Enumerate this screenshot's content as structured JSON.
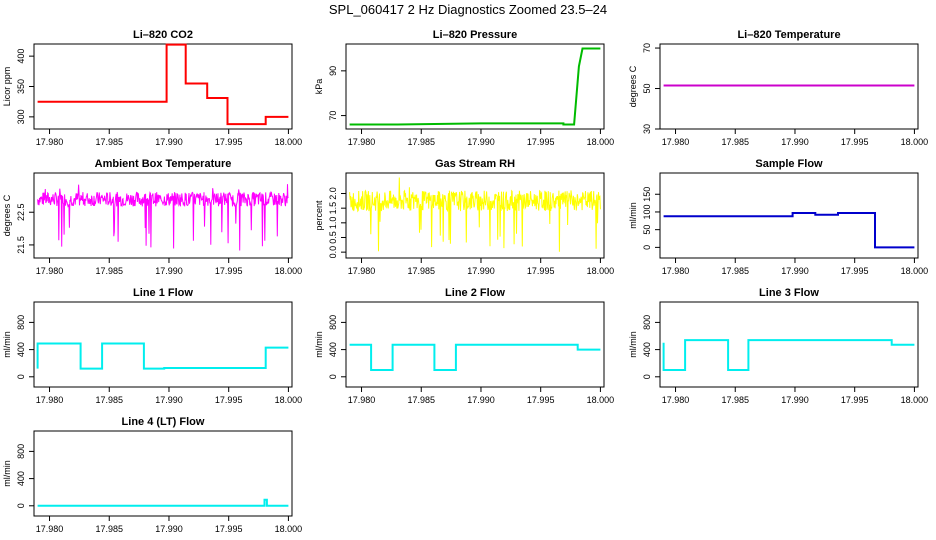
{
  "page": {
    "title": "SPL_060417  2 Hz Diagnostics Zoomed 23.5–24"
  },
  "chart_data": [
    {
      "type": "line",
      "title": "Li–820 CO2",
      "xlabel": "",
      "ylabel": "Licor ppm",
      "color": "#ff0000",
      "x_ticks": [
        "17.980",
        "17.985",
        "17.990",
        "17.995",
        "18.000"
      ],
      "xlim": [
        17.9787,
        18.0003
      ],
      "ylim": [
        280,
        420
      ],
      "y_ticks": [
        300,
        350,
        400
      ],
      "series": [
        {
          "x": [
            17.979,
            17.9898,
            17.9898,
            17.9914,
            17.9914,
            17.9932,
            17.9932,
            17.9949,
            17.9949,
            17.9981,
            17.9981,
            18.0
          ],
          "y": [
            325,
            325,
            419,
            419,
            355,
            355,
            331,
            331,
            288,
            288,
            300,
            300
          ]
        }
      ]
    },
    {
      "type": "line",
      "title": "Li–820 Pressure",
      "xlabel": "",
      "ylabel": "kPa",
      "color": "#00bb00",
      "x_ticks": [
        "17.980",
        "17.985",
        "17.990",
        "17.995",
        "18.000"
      ],
      "xlim": [
        17.9787,
        18.0003
      ],
      "ylim": [
        64,
        102
      ],
      "y_ticks": [
        70,
        90
      ],
      "series": [
        {
          "x": [
            17.979,
            17.983,
            17.99,
            17.9969,
            17.9969,
            17.9978,
            17.9982,
            17.9985,
            18.0
          ],
          "y": [
            66,
            66,
            66.5,
            66.5,
            66,
            66,
            92,
            100,
            100
          ]
        }
      ]
    },
    {
      "type": "line",
      "title": "Li–820 Temperature",
      "xlabel": "",
      "ylabel": "degrees C",
      "color": "#cc00cc",
      "x_ticks": [
        "17.980",
        "17.985",
        "17.990",
        "17.995",
        "18.000"
      ],
      "xlim": [
        17.9787,
        18.0003
      ],
      "ylim": [
        30,
        72
      ],
      "y_ticks": [
        30,
        50,
        70
      ],
      "series": [
        {
          "x": [
            17.979,
            18.0
          ],
          "y": [
            51.5,
            51.5
          ]
        }
      ]
    },
    {
      "type": "line",
      "title": "Ambient Box Temperature",
      "xlabel": "",
      "ylabel": "degrees C",
      "color": "#ff00ff",
      "x_ticks": [
        "17.980",
        "17.985",
        "17.990",
        "17.995",
        "18.000"
      ],
      "xlim": [
        17.9787,
        18.0003
      ],
      "ylim": [
        21.1,
        23.7
      ],
      "y_ticks": [
        21.5,
        22.5
      ],
      "noise": {
        "center": 22.9,
        "amp": 0.22,
        "spike_low": 21.3,
        "spike_high": 23.6
      },
      "series": [
        {
          "x": [
            17.979,
            18.0
          ],
          "y": [
            22.9,
            22.9
          ]
        }
      ]
    },
    {
      "type": "line",
      "title": "Gas Stream RH",
      "xlabel": "",
      "ylabel": "percent",
      "color": "#ffff00",
      "x_ticks": [
        "17.980",
        "17.985",
        "17.990",
        "17.995",
        "18.000"
      ],
      "xlim": [
        17.9787,
        18.0003
      ],
      "ylim": [
        -0.2,
        2.7
      ],
      "y_ticks": [
        0.0,
        0.5,
        1.0,
        1.5,
        2.0
      ],
      "noise": {
        "center": 1.75,
        "amp": 0.35,
        "spike_low": 0.0,
        "spike_high": 2.6
      },
      "series": [
        {
          "x": [
            17.979,
            18.0
          ],
          "y": [
            1.75,
            1.75
          ]
        }
      ]
    },
    {
      "type": "line",
      "title": "Sample Flow",
      "xlabel": "",
      "ylabel": "ml/min",
      "color": "#0000cc",
      "x_ticks": [
        "17.980",
        "17.985",
        "17.990",
        "17.995",
        "18.000"
      ],
      "xlim": [
        17.9787,
        18.0003
      ],
      "ylim": [
        -30,
        210
      ],
      "y_ticks": [
        0,
        50,
        100,
        150
      ],
      "series": [
        {
          "x": [
            17.979,
            17.9898,
            17.9898,
            17.9917,
            17.9917,
            17.9936,
            17.9936,
            17.9967,
            17.9967,
            18.0
          ],
          "y": [
            88,
            88,
            97,
            97,
            92,
            92,
            97,
            97,
            0,
            0
          ]
        }
      ]
    },
    {
      "type": "line",
      "title": "Line 1 Flow",
      "xlabel": "",
      "ylabel": "ml/min",
      "color": "#00eeee",
      "x_ticks": [
        "17.980",
        "17.985",
        "17.990",
        "17.995",
        "18.000"
      ],
      "xlim": [
        17.9787,
        18.0003
      ],
      "ylim": [
        -150,
        1100
      ],
      "y_ticks": [
        0,
        400,
        800
      ],
      "series": [
        {
          "x": [
            17.979,
            17.979,
            17.9826,
            17.9826,
            17.9844,
            17.9844,
            17.9879,
            17.9879,
            17.9896,
            17.9896,
            17.9981,
            17.9981,
            18.0
          ],
          "y": [
            120,
            490,
            490,
            120,
            120,
            490,
            490,
            120,
            120,
            130,
            130,
            430,
            430
          ]
        }
      ]
    },
    {
      "type": "line",
      "title": "Line 2 Flow",
      "xlabel": "",
      "ylabel": "ml/min",
      "color": "#00eeee",
      "x_ticks": [
        "17.980",
        "17.985",
        "17.990",
        "17.995",
        "18.000"
      ],
      "xlim": [
        17.9787,
        18.0003
      ],
      "ylim": [
        -150,
        1100
      ],
      "y_ticks": [
        0,
        400,
        800
      ],
      "series": [
        {
          "x": [
            17.979,
            17.9808,
            17.9808,
            17.9826,
            17.9826,
            17.9861,
            17.9861,
            17.9879,
            17.9879,
            17.9981,
            17.9981,
            18.0
          ],
          "y": [
            470,
            470,
            100,
            100,
            470,
            470,
            100,
            100,
            470,
            470,
            400,
            400
          ]
        }
      ]
    },
    {
      "type": "line",
      "title": "Line 3 Flow",
      "xlabel": "",
      "ylabel": "ml/min",
      "color": "#00eeee",
      "x_ticks": [
        "17.980",
        "17.985",
        "17.990",
        "17.995",
        "18.000"
      ],
      "xlim": [
        17.9787,
        18.0003
      ],
      "ylim": [
        -150,
        1100
      ],
      "y_ticks": [
        0,
        400,
        800
      ],
      "series": [
        {
          "x": [
            17.979,
            17.979,
            17.9808,
            17.9808,
            17.9844,
            17.9844,
            17.9861,
            17.9861,
            17.9981,
            17.9981,
            18.0
          ],
          "y": [
            500,
            100,
            100,
            540,
            540,
            100,
            100,
            540,
            540,
            470,
            470
          ]
        }
      ]
    },
    {
      "type": "line",
      "title": "Line 4 (LT) Flow",
      "xlabel": "",
      "ylabel": "ml/min",
      "color": "#00eeee",
      "x_ticks": [
        "17.980",
        "17.985",
        "17.990",
        "17.995",
        "18.000"
      ],
      "xlim": [
        17.9787,
        18.0003
      ],
      "ylim": [
        -150,
        1100
      ],
      "y_ticks": [
        0,
        400,
        800
      ],
      "series": [
        {
          "x": [
            17.979,
            17.998,
            17.998,
            17.9982,
            17.9982,
            18.0
          ],
          "y": [
            0,
            0,
            90,
            90,
            0,
            0
          ]
        }
      ]
    }
  ]
}
